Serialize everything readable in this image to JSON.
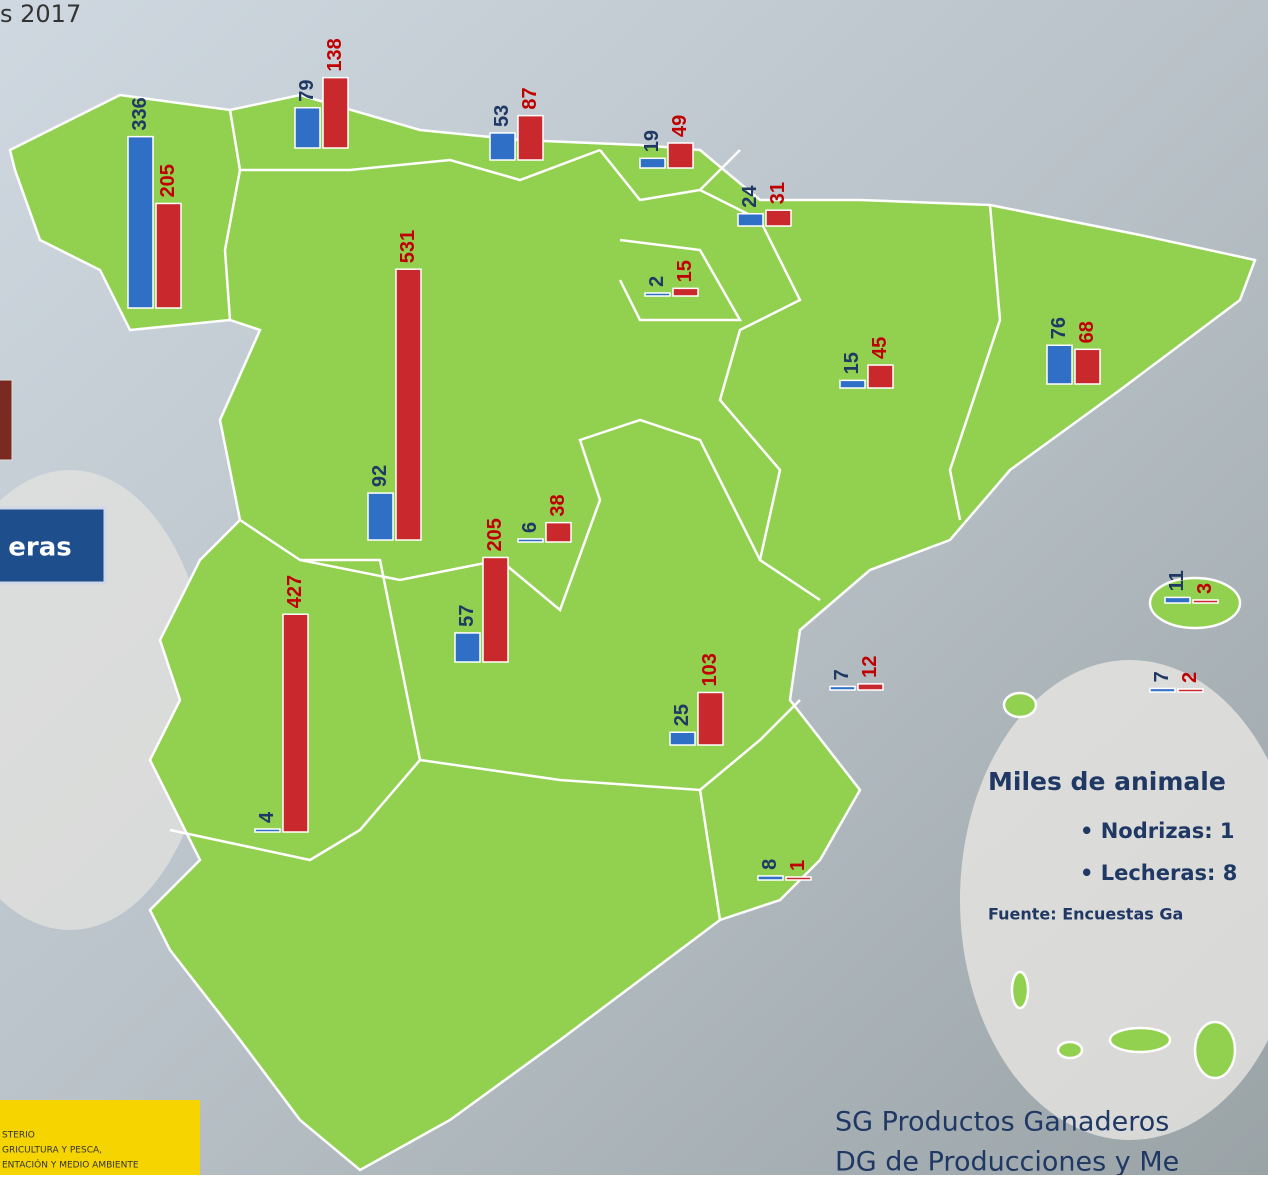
{
  "header_text": "s 2017",
  "side_box": "eras",
  "legend": {
    "title": "Miles de animale",
    "items": [
      "Nodrizas: 1",
      "Lecheras: 8"
    ],
    "source": "Fuente: Encuestas Ga"
  },
  "footer": [
    "SG Productos Ganaderos",
    "DG de Producciones y Me"
  ],
  "logo": [
    "STERIO",
    "GRICULTURA Y PESCA,",
    "ENTACIÓN Y MEDIO AMBIENTE"
  ],
  "chart_data": {
    "type": "bar",
    "series": [
      {
        "color": "#2f6fc6",
        "values": [
          336,
          79,
          53,
          19,
          24,
          2,
          15,
          76,
          92,
          6,
          4,
          25,
          7,
          57,
          8,
          11,
          7
        ]
      },
      {
        "color": "#c9282d",
        "values": [
          205,
          138,
          87,
          49,
          31,
          15,
          45,
          68,
          531,
          38,
          427,
          103,
          12,
          205,
          1,
          3,
          2
        ]
      }
    ]
  }
}
